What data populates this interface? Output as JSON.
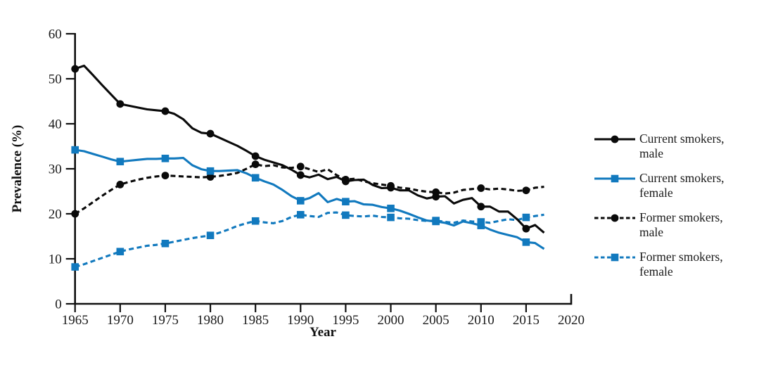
{
  "figure": {
    "background": "#ffffff",
    "text_color": "#1a1a1a"
  },
  "chart_data": {
    "type": "line",
    "title": "",
    "xlabel": "Year",
    "ylabel": "Prevalence (%)",
    "xlim": [
      1965,
      2020
    ],
    "ylim": [
      0,
      60
    ],
    "x_ticks": [
      1965,
      1970,
      1975,
      1980,
      1985,
      1990,
      1995,
      2000,
      2005,
      2010,
      2015,
      2020
    ],
    "y_ticks": [
      0,
      10,
      20,
      30,
      40,
      50,
      60
    ],
    "grid": "off",
    "legend_position": "right-outside",
    "marker_years": [
      1965,
      1970,
      1975,
      1980,
      1985,
      1990,
      1995,
      2000,
      2005,
      2010,
      2015
    ],
    "years": [
      1965,
      1966,
      1967,
      1968,
      1969,
      1970,
      1971,
      1972,
      1973,
      1974,
      1975,
      1976,
      1977,
      1978,
      1979,
      1980,
      1981,
      1982,
      1983,
      1984,
      1985,
      1986,
      1987,
      1988,
      1989,
      1990,
      1991,
      1992,
      1993,
      1994,
      1995,
      1996,
      1997,
      1998,
      1999,
      2000,
      2001,
      2002,
      2003,
      2004,
      2005,
      2006,
      2007,
      2008,
      2009,
      2010,
      2011,
      2012,
      2013,
      2014,
      2015,
      2016,
      2017
    ],
    "series": [
      {
        "name": "former-smokers-female",
        "label_line1": "Former smokers,",
        "label_line2": "female",
        "color": "#1179be",
        "line_style": "dashed",
        "marker": "square",
        "values": [
          8.2,
          8.8,
          9.5,
          10.2,
          10.9,
          11.6,
          12.1,
          12.5,
          12.9,
          13.1,
          13.4,
          13.8,
          14.2,
          14.6,
          14.9,
          15.2,
          15.8,
          16.5,
          17.3,
          17.9,
          18.4,
          18.1,
          17.9,
          18.4,
          19.3,
          19.8,
          19.5,
          19.3,
          20.2,
          20.3,
          19.7,
          19.5,
          19.4,
          19.6,
          19.3,
          19.2,
          19.0,
          18.9,
          18.6,
          18.4,
          18.5,
          18.2,
          18.0,
          18.5,
          18.3,
          18.2,
          18.0,
          18.4,
          18.8,
          18.6,
          19.2,
          19.5,
          19.8
        ]
      },
      {
        "name": "former-smokers-male",
        "label_line1": "Former smokers,",
        "label_line2": "male",
        "color": "#0a0a0a",
        "line_style": "dashed",
        "marker": "circle",
        "values": [
          20.0,
          21.2,
          22.6,
          24.0,
          25.3,
          26.5,
          27.1,
          27.6,
          28.0,
          28.3,
          28.5,
          28.4,
          28.3,
          28.2,
          28.1,
          28.2,
          28.4,
          28.7,
          29.1,
          30.0,
          31.0,
          30.6,
          30.8,
          30.3,
          30.2,
          30.5,
          29.9,
          29.3,
          29.9,
          28.6,
          27.6,
          27.8,
          27.2,
          26.8,
          26.5,
          26.2,
          25.8,
          25.6,
          25.2,
          24.9,
          24.8,
          24.5,
          24.7,
          25.3,
          25.5,
          25.7,
          25.4,
          25.6,
          25.4,
          25.1,
          25.2,
          25.8,
          26.0
        ]
      },
      {
        "name": "current-smokers-female",
        "label_line1": "Current smokers,",
        "label_line2": "female",
        "color": "#1179be",
        "line_style": "solid",
        "marker": "square",
        "values": [
          34.2,
          33.9,
          33.3,
          32.7,
          32.1,
          31.6,
          31.8,
          32.0,
          32.2,
          32.2,
          32.3,
          32.3,
          32.4,
          30.8,
          29.9,
          29.5,
          29.5,
          29.6,
          29.7,
          29.0,
          28.0,
          27.2,
          26.5,
          25.3,
          23.9,
          22.9,
          23.5,
          24.6,
          22.6,
          23.3,
          22.7,
          22.8,
          22.1,
          22.0,
          21.5,
          21.2,
          20.7,
          20.0,
          19.2,
          18.5,
          18.3,
          18.0,
          17.4,
          18.3,
          17.9,
          17.4,
          16.5,
          15.8,
          15.3,
          14.8,
          13.7,
          13.5,
          12.2
        ]
      },
      {
        "name": "current-smokers-male",
        "label_line1": "Current smokers,",
        "label_line2": "male",
        "color": "#0a0a0a",
        "line_style": "solid",
        "marker": "circle",
        "values": [
          52.2,
          52.9,
          50.8,
          48.6,
          46.5,
          44.4,
          44.0,
          43.6,
          43.2,
          43.0,
          42.8,
          42.2,
          41.0,
          39.0,
          38.0,
          37.8,
          36.9,
          36.0,
          35.1,
          34.0,
          32.8,
          32.0,
          31.4,
          30.8,
          29.8,
          28.6,
          28.1,
          28.7,
          27.7,
          28.2,
          27.2,
          27.5,
          27.6,
          26.4,
          25.7,
          25.8,
          25.2,
          25.2,
          24.1,
          23.4,
          23.8,
          23.9,
          22.3,
          23.1,
          23.5,
          21.6,
          21.6,
          20.5,
          20.5,
          18.8,
          16.7,
          17.5,
          15.8
        ]
      }
    ],
    "legend_order": [
      3,
      2,
      1,
      0
    ]
  }
}
